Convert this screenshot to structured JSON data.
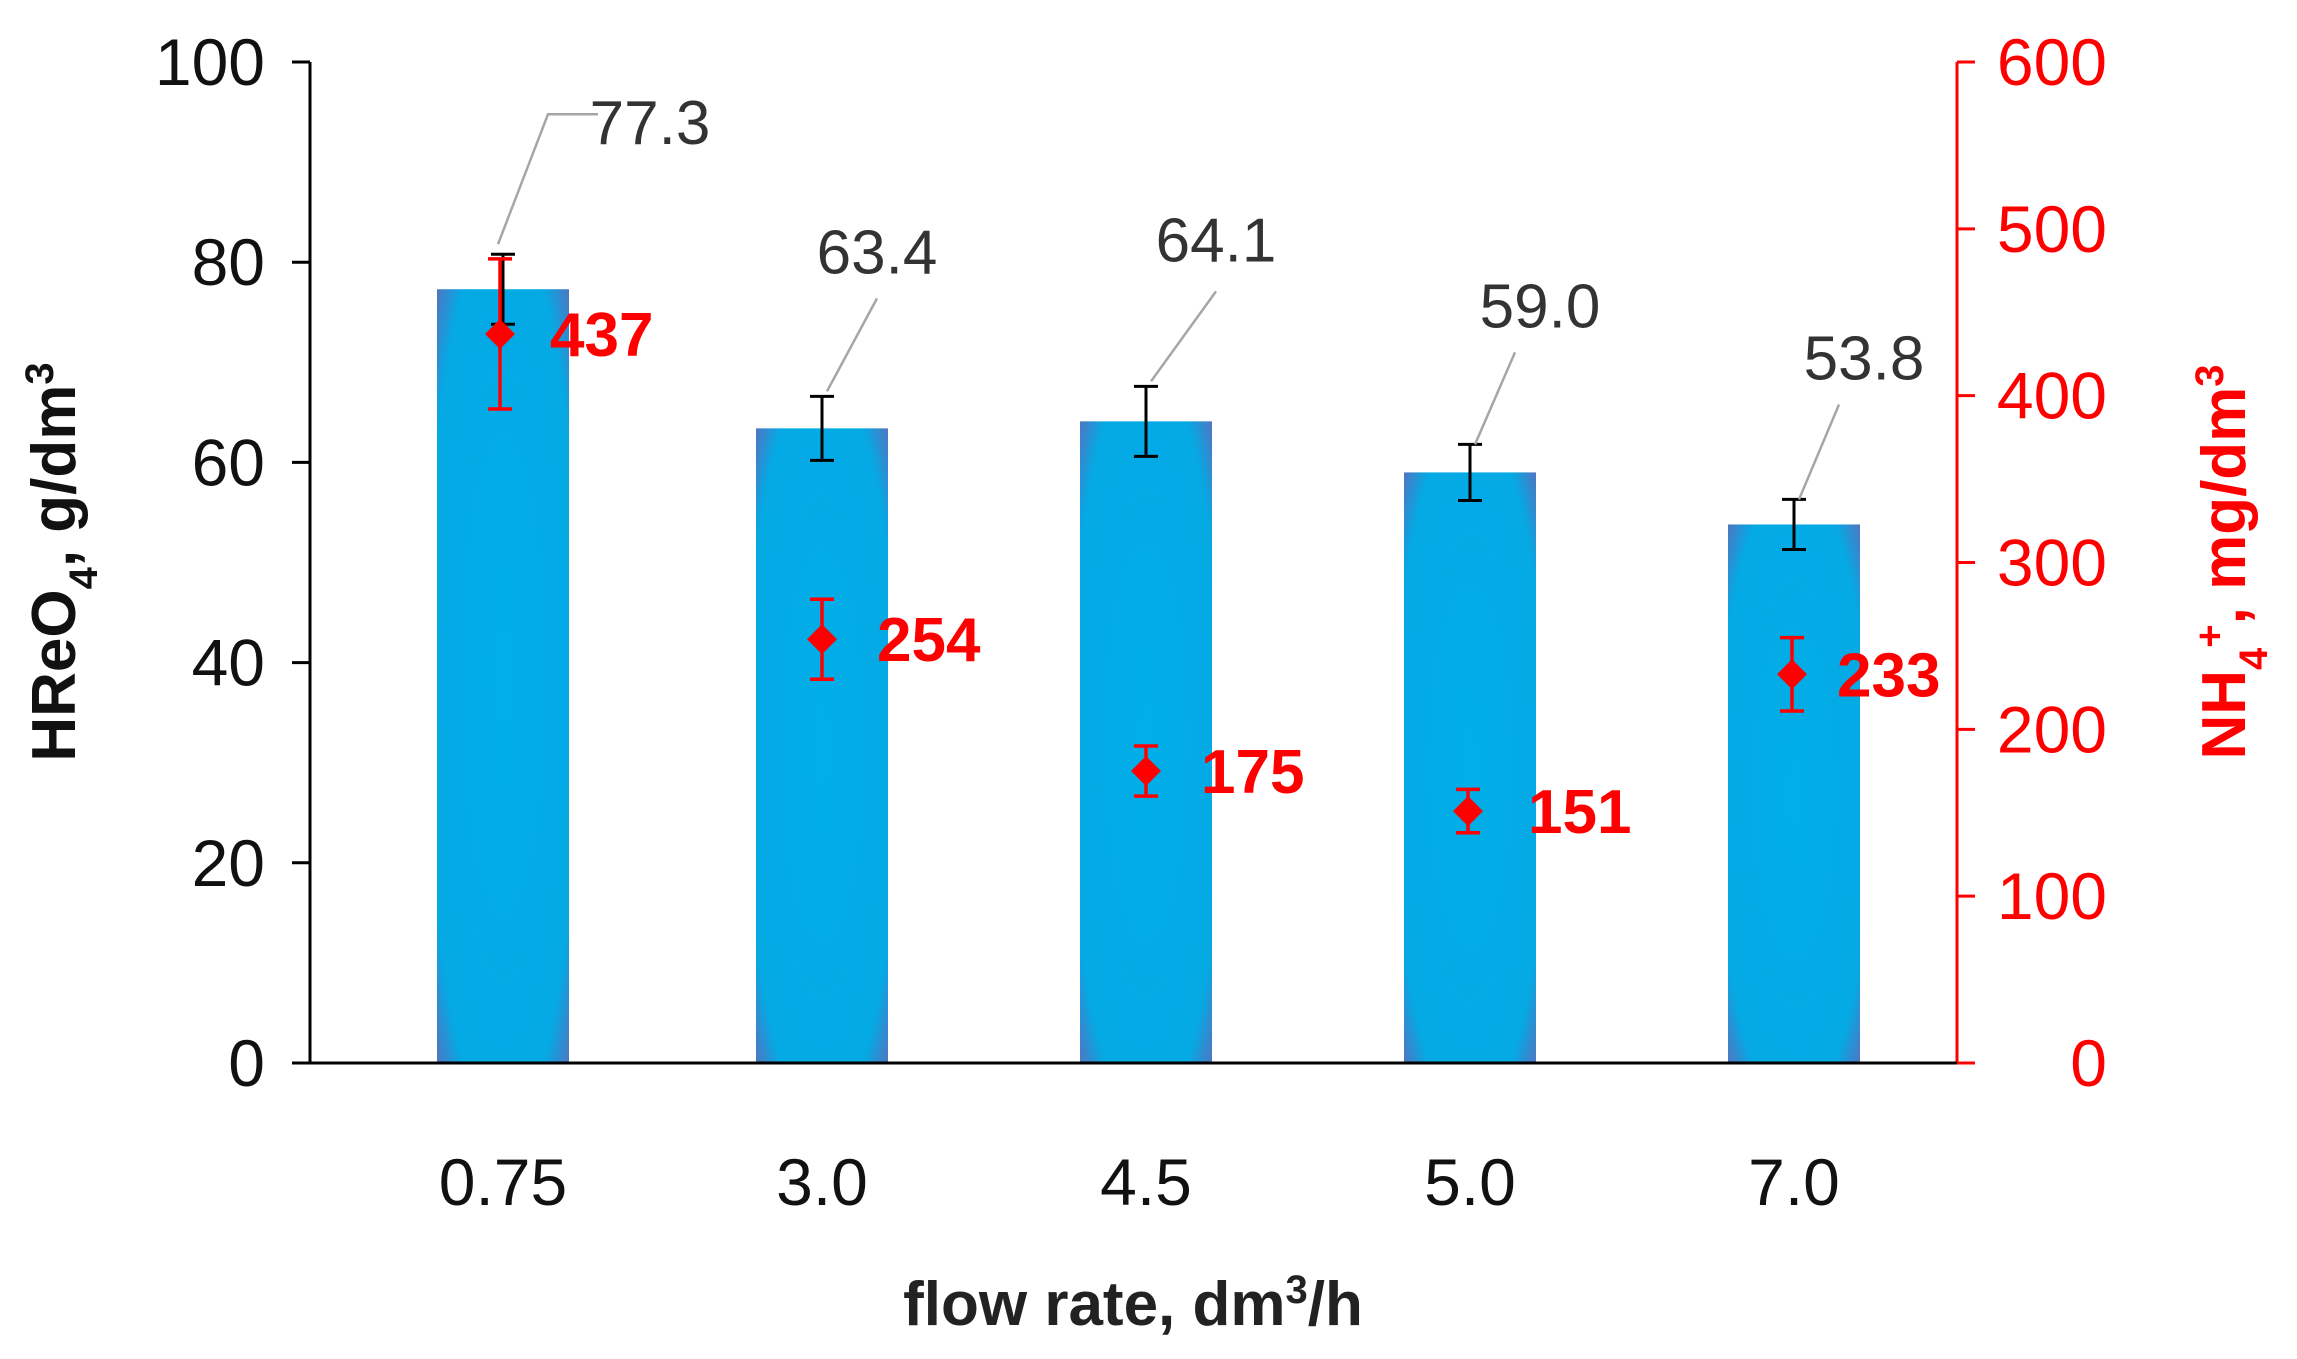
{
  "colors": {
    "bar_fill": "#00aee8",
    "bar_edge": "#6b63b5",
    "nh4": "#ff0000",
    "axis": "#000000",
    "text": "#111111",
    "label": "#333333",
    "leader": "#a6a6a6"
  },
  "chart_data": {
    "type": "bar",
    "xlabel": "flow rate, dm",
    "xlabel_sup": "3",
    "xlabel_tail": "/h",
    "ylabel_left": {
      "base": "HReO",
      "sub": "4",
      "mid": ", g/dm",
      "sup": "3"
    },
    "ylabel_right": {
      "base": "NH",
      "sub": "4",
      "sup": "+",
      "mid": ", mg/dm",
      "sup2": "3"
    },
    "categories": [
      "0.75",
      "3.0",
      "4.5",
      "5.0",
      "7.0"
    ],
    "ylim_left": [
      0,
      100
    ],
    "yticks_left": [
      "0",
      "20",
      "40",
      "60",
      "80",
      "100"
    ],
    "ylim_right": [
      0,
      600
    ],
    "yticks_right": [
      "0",
      "100",
      "200",
      "300",
      "400",
      "500",
      "600"
    ],
    "series": [
      {
        "name": "HReO4",
        "axis": "left",
        "kind": "bar",
        "values": [
          77.3,
          63.4,
          64.1,
          59.0,
          53.8
        ],
        "errors": [
          3.5,
          3.2,
          3.5,
          2.8,
          2.5
        ],
        "labels": [
          "77.3",
          "63.4",
          "64.1",
          "59.0",
          "53.8"
        ]
      },
      {
        "name": "NH4+",
        "axis": "right",
        "kind": "scatter",
        "values": [
          437,
          254,
          175,
          151,
          233
        ],
        "errors": [
          45,
          24,
          15,
          13,
          22
        ],
        "labels": [
          "437",
          "254",
          "175",
          "151",
          "233"
        ]
      }
    ]
  }
}
